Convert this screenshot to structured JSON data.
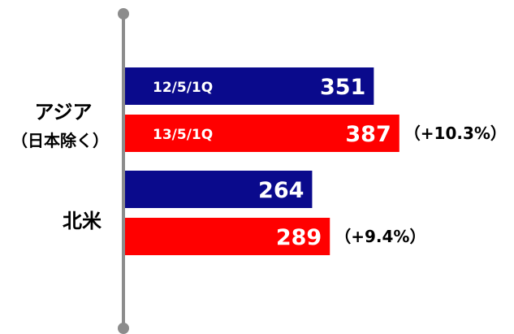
{
  "chart_data": {
    "type": "bar",
    "orientation": "horizontal",
    "categories": [
      "アジア\n（日本除く）",
      "北米"
    ],
    "category_lines": [
      [
        "アジア",
        "（日本除く）"
      ],
      [
        "北米"
      ]
    ],
    "series": [
      {
        "name": "12/5/1Q",
        "color": "#0a0a8c",
        "values": [
          351,
          264
        ]
      },
      {
        "name": "13/5/1Q",
        "color": "#ff0000",
        "values": [
          387,
          289
        ]
      }
    ],
    "growth_labels": [
      "（+10.3%）",
      "（+9.4%）"
    ],
    "axis_line_color": "#8c8c8c",
    "grid": false,
    "legend": "inside first bars"
  }
}
